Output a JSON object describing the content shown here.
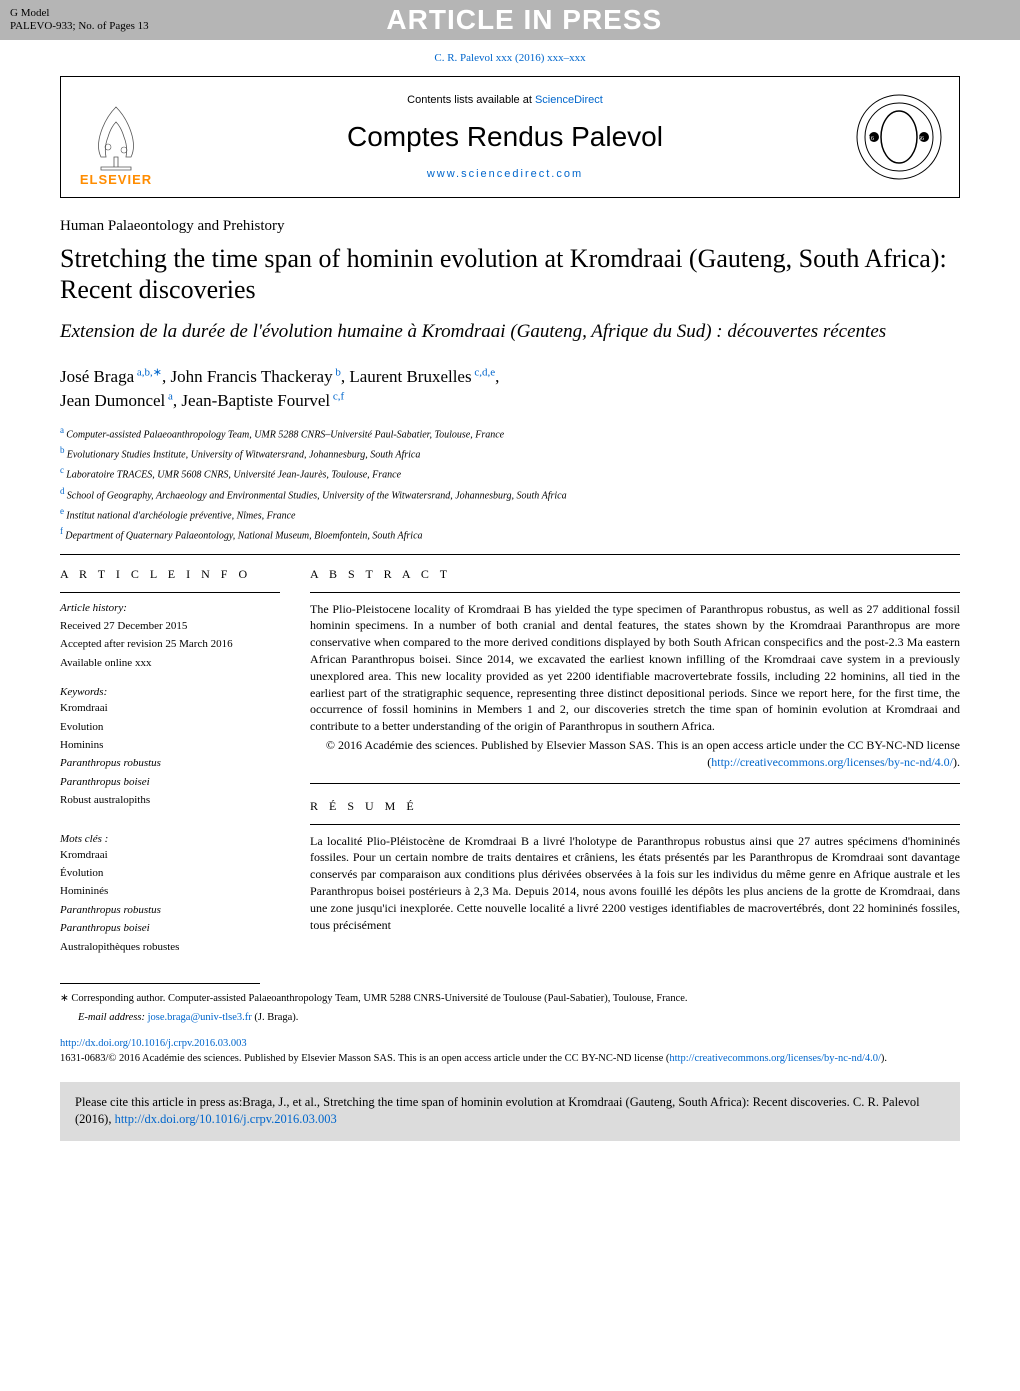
{
  "gmodel": {
    "label": "G Model",
    "ref": "PALEVO-933;   No. of Pages 13",
    "banner": "ARTICLE IN PRESS"
  },
  "citationLine": "C. R. Palevol xxx (2016) xxx–xxx",
  "headerBox": {
    "contentsPrefix": "Contents lists available at ",
    "contentsLink": "ScienceDirect",
    "journalTitle": "Comptes Rendus Palevol",
    "journalUrl": "www.sciencedirect.com",
    "elsevierText": "ELSEVIER"
  },
  "category": "Human Palaeontology and Prehistory",
  "titleEn": "Stretching the time span of hominin evolution at Kromdraai (Gauteng, South Africa): Recent discoveries",
  "titleFr": "Extension de la durée de l'évolution humaine à Kromdraai (Gauteng, Afrique du Sud) : découvertes récentes",
  "authors": [
    {
      "name": "José Braga",
      "sup": "a,b,∗"
    },
    {
      "name": "John Francis Thackeray",
      "sup": "b"
    },
    {
      "name": "Laurent Bruxelles",
      "sup": "c,d,e"
    },
    {
      "name": "Jean Dumoncel",
      "sup": "a"
    },
    {
      "name": "Jean-Baptiste Fourvel",
      "sup": "c,f"
    }
  ],
  "affiliations": [
    {
      "sup": "a",
      "text": "Computer-assisted Palaeoanthropology Team, UMR 5288 CNRS–Université Paul-Sabatier, Toulouse, France"
    },
    {
      "sup": "b",
      "text": "Evolutionary Studies Institute, University of Witwatersrand, Johannesburg, South Africa"
    },
    {
      "sup": "c",
      "text": "Laboratoire TRACES, UMR 5608 CNRS, Université Jean-Jaurès, Toulouse, France"
    },
    {
      "sup": "d",
      "text": "School of Geography, Archaeology and Environmental Studies, University of the Witwatersrand, Johannesburg, South Africa"
    },
    {
      "sup": "e",
      "text": "Institut national d'archéologie préventive, Nîmes, France"
    },
    {
      "sup": "f",
      "text": "Department of Quaternary Palaeontology, National Museum, Bloemfontein, South Africa"
    }
  ],
  "articleInfo": {
    "heading": "A R T I C L E   I N F O",
    "historyLabel": "Article history:",
    "received": "Received 27 December 2015",
    "accepted": "Accepted after revision 25 March 2016",
    "available": "Available online xxx",
    "keywordsLabel": "Keywords:",
    "keywords": [
      "Kromdraai",
      "Evolution",
      "Hominins",
      "Paranthropus robustus",
      "Paranthropus boisei",
      "Robust australopiths"
    ],
    "motsClesLabel": "Mots clés :",
    "motsCles": [
      "Kromdraai",
      "Évolution",
      "Homininés",
      "Paranthropus robustus",
      "Paranthropus boisei",
      "Australopithèques robustes"
    ]
  },
  "abstract": {
    "heading": "A B S T R A C T",
    "text": "The Plio-Pleistocene locality of Kromdraai B has yielded the type specimen of Paranthropus robustus, as well as 27 additional fossil hominin specimens. In a number of both cranial and dental features, the states shown by the Kromdraai Paranthropus are more conservative when compared to the more derived conditions displayed by both South African conspecifics and the post-2.3 Ma eastern African Paranthropus boisei. Since 2014, we excavated the earliest known infilling of the Kromdraai cave system in a previously unexplored area. This new locality provided as yet 2200 identifiable macrovertebrate fossils, including 22 hominins, all tied in the earliest part of the stratigraphic sequence, representing three distinct depositional periods. Since we report here, for the first time, the occurrence of fossil hominins in Members 1 and 2, our discoveries stretch the time span of hominin evolution at Kromdraai and contribute to a better understanding of the origin of Paranthropus in southern Africa.",
    "copyright": "© 2016 Académie des sciences. Published by Elsevier Masson SAS. This is an open access article under the CC BY-NC-ND license (",
    "licenseUrl": "http://creativecommons.org/licenses/by-nc-nd/4.0/",
    "copyrightEnd": ")."
  },
  "resume": {
    "heading": "R É S U M É",
    "text": "La localité Plio-Pléistocène de Kromdraai B a livré l'holotype de Paranthropus robustus ainsi que 27 autres spécimens d'homininés fossiles. Pour un certain nombre de traits dentaires et crâniens, les états présentés par les Paranthropus de Kromdraai sont davantage conservés par comparaison aux conditions plus dérivées observées à la fois sur les individus du même genre en Afrique australe et les Paranthropus boisei postérieurs à 2,3 Ma. Depuis 2014, nous avons fouillé les dépôts les plus anciens de la grotte de Kromdraai, dans une zone jusqu'ici inexplorée. Cette nouvelle localité a livré 2200 vestiges identifiables de macrovertébrés, dont 22 homininés fossiles, tous précisément"
  },
  "footnotes": {
    "corresponding": "∗   Corresponding author. Computer-assisted Palaeoanthropology Team, UMR 5288 CNRS-Université de Toulouse (Paul-Sabatier), Toulouse, France.",
    "emailLabel": "E-mail address: ",
    "email": "jose.braga@univ-tlse3.fr",
    "emailAuthor": " (J. Braga)."
  },
  "doi": {
    "url": "http://dx.doi.org/10.1016/j.crpv.2016.03.003",
    "copyright": "1631-0683/© 2016 Académie des sciences. Published by Elsevier Masson SAS. This is an open access article under the CC BY-NC-ND license (",
    "licenseUrl": "http://creativecommons.org/licenses/by-nc-nd/4.0/",
    "copyrightEnd": ")."
  },
  "citeBox": {
    "text": "Please cite this article in press as:Braga, J., et al., Stretching the time span of hominin evolution at Kromdraai (Gauteng, South Africa): Recent discoveries. C. R. Palevol (2016), ",
    "url": "http://dx.doi.org/10.1016/j.crpv.2016.03.003"
  },
  "colors": {
    "link": "#0066cc",
    "grayBar": "#b5b5b5",
    "white": "#ffffff",
    "citeBg": "#dcdcdc",
    "elsevierOrange": "#ff8c00"
  }
}
